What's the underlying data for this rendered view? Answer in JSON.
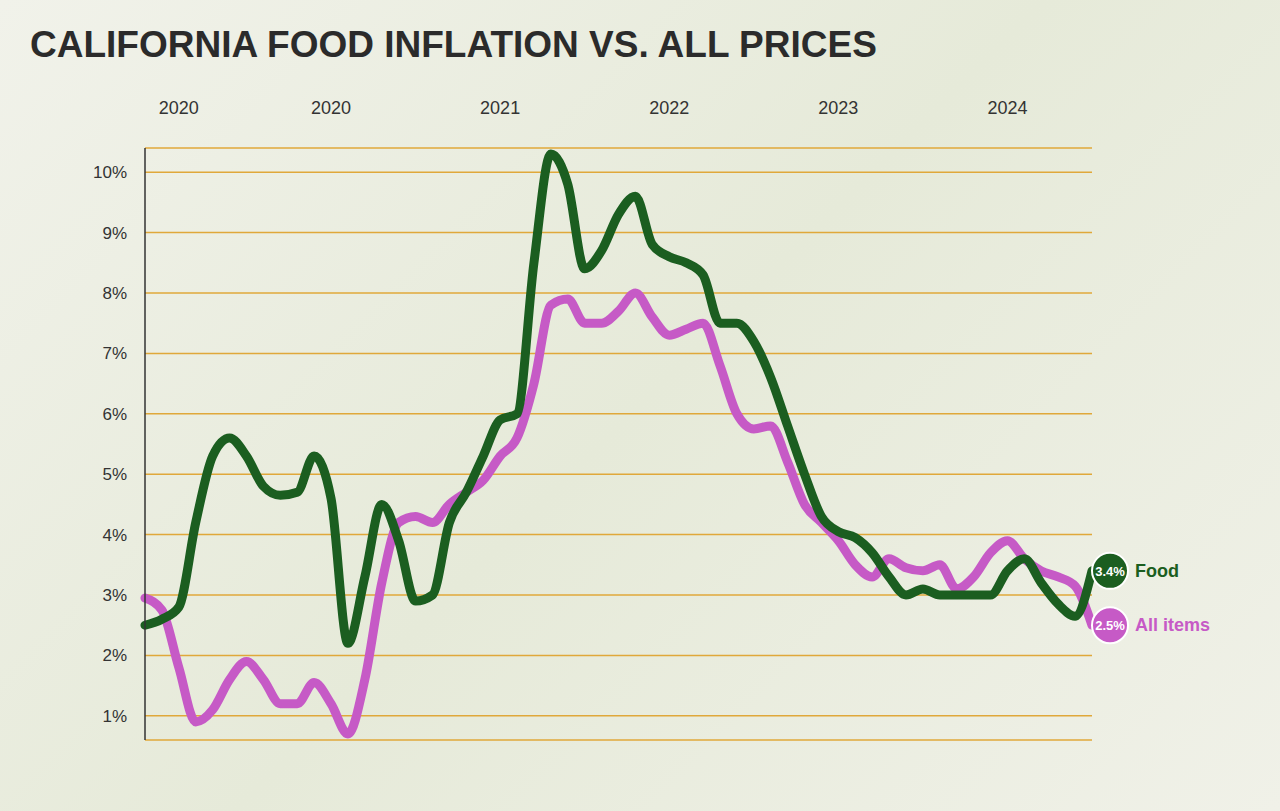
{
  "chart_data": {
    "type": "line",
    "title": "CALIFORNIA FOOD INFLATION VS. ALL PRICES",
    "categories": [
      null,
      null,
      "2020",
      null,
      null,
      null,
      null,
      null,
      null,
      null,
      null,
      "2020",
      null,
      null,
      null,
      null,
      null,
      null,
      null,
      null,
      null,
      "2021",
      null,
      null,
      null,
      null,
      null,
      null,
      null,
      null,
      null,
      "2022",
      null,
      null,
      null,
      null,
      null,
      null,
      null,
      null,
      null,
      "2023",
      null,
      null,
      null,
      null,
      null,
      null,
      null,
      null,
      null,
      "2024",
      null,
      null,
      null,
      null,
      null
    ],
    "ylim": [
      0.6,
      10.4
    ],
    "yticks": [
      {
        "value": 1,
        "label": "1%"
      },
      {
        "value": 2,
        "label": "2%"
      },
      {
        "value": 3,
        "label": "3%"
      },
      {
        "value": 4,
        "label": "4%"
      },
      {
        "value": 5,
        "label": "5%"
      },
      {
        "value": 6,
        "label": "6%"
      },
      {
        "value": 7,
        "label": "7%"
      },
      {
        "value": 8,
        "label": "8%"
      },
      {
        "value": 9,
        "label": "9%"
      },
      {
        "value": 10,
        "label": "10%"
      }
    ],
    "grid": true,
    "series": [
      {
        "name": "Food",
        "color": "#1b5e20",
        "values": [
          2.5,
          2.6,
          2.8,
          4.2,
          5.3,
          5.6,
          5.3,
          4.8,
          4.65,
          4.7,
          5.3,
          4.6,
          2.2,
          3.3,
          4.5,
          3.9,
          2.9,
          3.0,
          4.2,
          4.7,
          5.3,
          5.9,
          6.0,
          8.5,
          10.3,
          9.8,
          8.4,
          8.7,
          9.3,
          9.6,
          8.8,
          8.6,
          8.5,
          8.3,
          7.5,
          7.5,
          7.2,
          6.6,
          5.8,
          5.0,
          4.3,
          4.05,
          3.95,
          3.7,
          3.3,
          3.0,
          3.1,
          3.0,
          3.0,
          3.0,
          3.0,
          3.4,
          3.6,
          3.2,
          2.85,
          2.65,
          3.4
        ],
        "value_labels": [
          null,
          null,
          null,
          null,
          null,
          null,
          null,
          null,
          null,
          null,
          null,
          null,
          null,
          null,
          null,
          null,
          null,
          null,
          null,
          null,
          null,
          null,
          null,
          null,
          null,
          null,
          null,
          null,
          null,
          null,
          null,
          null,
          null,
          null,
          null,
          null,
          null,
          null,
          null,
          null,
          null,
          null,
          null,
          null,
          null,
          null,
          null,
          null,
          null,
          null,
          null,
          null,
          null,
          null,
          null,
          null,
          "3.4%"
        ]
      },
      {
        "name": "All items",
        "color": "#c65ac6",
        "values": [
          2.95,
          2.75,
          1.8,
          0.9,
          1.1,
          1.6,
          1.9,
          1.6,
          1.2,
          1.2,
          1.55,
          1.2,
          0.7,
          1.6,
          3.2,
          4.2,
          4.3,
          4.2,
          4.5,
          4.7,
          4.9,
          5.3,
          5.6,
          6.5,
          7.8,
          7.9,
          7.5,
          7.5,
          7.7,
          8.0,
          7.6,
          7.3,
          7.4,
          7.5,
          6.8,
          6.0,
          5.75,
          5.8,
          5.2,
          4.5,
          4.2,
          3.9,
          3.5,
          3.3,
          3.6,
          3.45,
          3.4,
          3.5,
          3.1,
          3.3,
          3.7,
          3.9,
          3.6,
          3.4,
          3.3,
          3.15,
          2.5
        ],
        "value_labels": [
          null,
          null,
          null,
          null,
          null,
          null,
          null,
          null,
          null,
          null,
          null,
          null,
          null,
          null,
          null,
          null,
          null,
          null,
          null,
          null,
          null,
          null,
          null,
          null,
          null,
          null,
          null,
          null,
          null,
          null,
          null,
          null,
          null,
          null,
          null,
          null,
          null,
          null,
          null,
          null,
          null,
          null,
          null,
          null,
          null,
          null,
          null,
          null,
          null,
          null,
          null,
          null,
          null,
          null,
          null,
          null,
          "2.5%"
        ]
      }
    ]
  }
}
